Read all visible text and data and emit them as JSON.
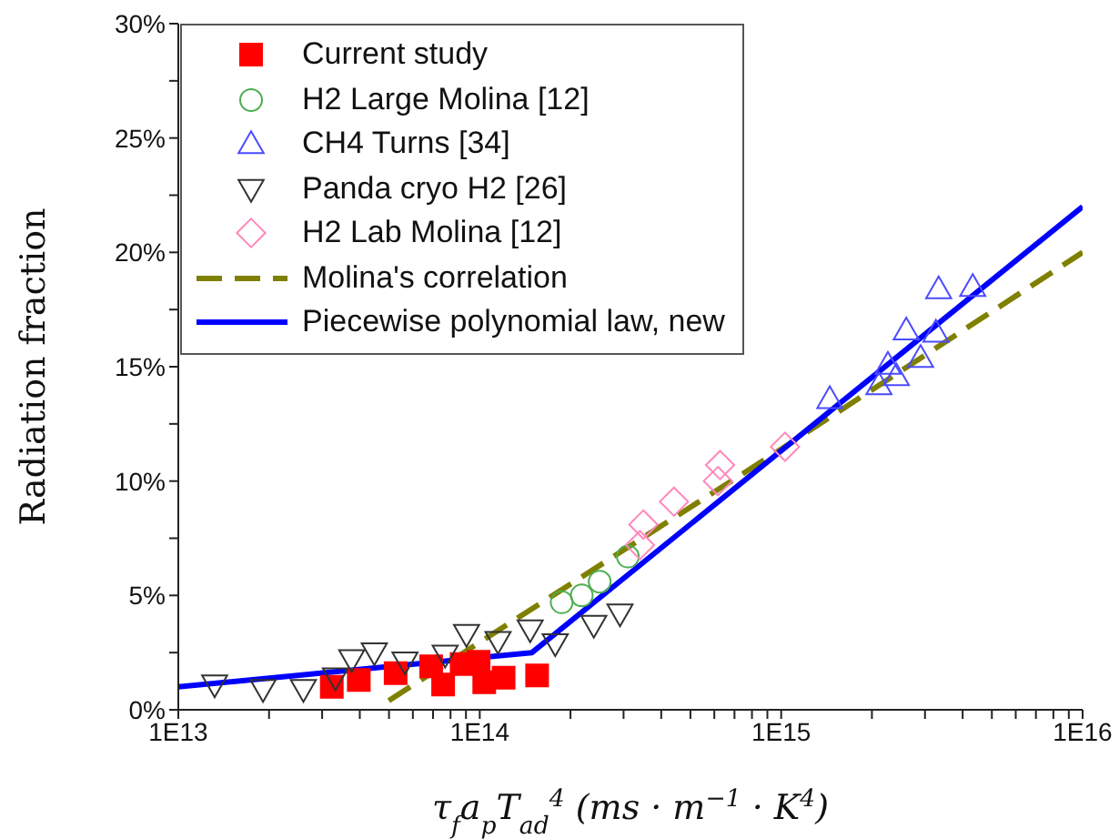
{
  "chart_data": {
    "type": "scatter",
    "xlabel": "τ$_{f}$a$_{p}$T$_{ad}$$^{4}$   (ms · m$^{−1}$ · K$^{4}$)",
    "ylabel": "Radiation fraction",
    "log": "x",
    "legend": "top left",
    "xlim": [
      10000000000000.0,
      1e+16
    ],
    "ylim": [
      0,
      30
    ],
    "xticks": [
      {
        "value": 10000000000000.0,
        "label": "1E13"
      },
      {
        "value": 20000000000000.0,
        "label": null
      },
      {
        "value": 30000000000000.0,
        "label": null
      },
      {
        "value": 40000000000000.0,
        "label": null
      },
      {
        "value": 50000000000000.0,
        "label": null
      },
      {
        "value": 60000000000000.0,
        "label": null
      },
      {
        "value": 70000000000000.0,
        "label": null
      },
      {
        "value": 80000000000000.0,
        "label": null
      },
      {
        "value": 90000000000000.0,
        "label": null
      },
      {
        "value": 100000000000000.0,
        "label": "1E14"
      },
      {
        "value": 200000000000000.0,
        "label": null
      },
      {
        "value": 300000000000000.0,
        "label": null
      },
      {
        "value": 400000000000000.0,
        "label": null
      },
      {
        "value": 500000000000000.0,
        "label": null
      },
      {
        "value": 600000000000000.0,
        "label": null
      },
      {
        "value": 700000000000000.0,
        "label": null
      },
      {
        "value": 800000000000000.0,
        "label": null
      },
      {
        "value": 900000000000000.0,
        "label": null
      },
      {
        "value": 1000000000000000.0,
        "label": "1E15"
      },
      {
        "value": 2000000000000000.0,
        "label": null
      },
      {
        "value": 3000000000000000.0,
        "label": null
      },
      {
        "value": 4000000000000000.0,
        "label": null
      },
      {
        "value": 5000000000000000.0,
        "label": null
      },
      {
        "value": 6000000000000000.0,
        "label": null
      },
      {
        "value": 7000000000000000.0,
        "label": null
      },
      {
        "value": 8000000000000000.0,
        "label": null
      },
      {
        "value": 9000000000000000.0,
        "label": null
      },
      {
        "value": 1e+16,
        "label": "1E16"
      }
    ],
    "yticks": [
      {
        "value": 0,
        "label": "0%"
      },
      {
        "value": 2.5,
        "label": null
      },
      {
        "value": 5,
        "label": "5%"
      },
      {
        "value": 7.5,
        "label": null
      },
      {
        "value": 10,
        "label": "10%"
      },
      {
        "value": 12.5,
        "label": null
      },
      {
        "value": 15,
        "label": "15%"
      },
      {
        "value": 17.5,
        "label": null
      },
      {
        "value": 20,
        "label": "20%"
      },
      {
        "value": 22.5,
        "label": null
      },
      {
        "value": 25,
        "label": "25%"
      },
      {
        "value": 27.5,
        "label": null
      },
      {
        "value": 30,
        "label": "30%"
      }
    ],
    "series": [
      {
        "name": "Current study",
        "marker": "square",
        "color": "#ff0000",
        "x": [
          32300000000000.0,
          39700000000000.0,
          52600000000000.0,
          69000000000000.0,
          75600000000000.0,
          87100000000000.0,
          99100000000000.0,
          103500000000000.0,
          120000000000000.0,
          155000000000000.0
        ],
        "values": [
          1.0,
          1.3,
          1.6,
          1.9,
          1.1,
          2.0,
          2.1,
          1.2,
          1.4,
          1.5
        ]
      },
      {
        "name": "H2 Large Molina [12]",
        "marker": "circle",
        "color": "#4caf50",
        "x": [
          187000000000000.0,
          218000000000000.0,
          250000000000000.0,
          310000000000000.0
        ],
        "values": [
          4.7,
          5.0,
          5.6,
          6.7
        ]
      },
      {
        "name": "CH4 Turns [34]",
        "marker": "triangle",
        "color": "#4b4bff",
        "x": [
          1450000000000000.0,
          2110000000000000.0,
          2260000000000000.0,
          2410000000000000.0,
          2600000000000000.0,
          2900000000000000.0,
          3260000000000000.0,
          3330000000000000.0,
          4320000000000000.0
        ],
        "values": [
          13.6,
          14.2,
          15.1,
          14.6,
          16.6,
          15.4,
          16.5,
          18.4,
          18.5
        ]
      },
      {
        "name": "Panda cryo H2 [26]",
        "marker": "triangle-down",
        "color": "#333333",
        "x": [
          13200000000000.0,
          19100000000000.0,
          26000000000000.0,
          33200000000000.0,
          37600000000000.0,
          44700000000000.0,
          56500000000000.0,
          76800000000000.0,
          90400000000000.0,
          115000000000000.0,
          147000000000000.0,
          178000000000000.0,
          239000000000000.0,
          292000000000000.0
        ],
        "values": [
          1.1,
          0.9,
          0.9,
          1.4,
          2.2,
          2.5,
          2.1,
          2.4,
          3.3,
          3.0,
          3.5,
          2.9,
          3.7,
          4.2
        ]
      },
      {
        "name": "H2 Lab Molina [12]",
        "marker": "diamond",
        "color": "#ff88bb",
        "x": [
          340000000000000.0,
          349000000000000.0,
          441000000000000.0,
          617000000000000.0,
          627000000000000.0,
          1030000000000000.0
        ],
        "values": [
          7.2,
          8.1,
          9.1,
          10.0,
          10.7,
          11.5
        ]
      },
      {
        "name": "Molina's correlation",
        "type": "line",
        "line_style": "dashed",
        "color": "#808000",
        "x": [
          49900000000000.0,
          1000000000000000.0,
          1e+16
        ],
        "values": [
          0.4,
          11.4,
          20.0
        ]
      },
      {
        "name": "Piecewise polynomial law, new",
        "type": "line",
        "line_style": "solid",
        "color": "#0000ff",
        "x": [
          10000000000000.0,
          149000000000000.0,
          1e+16
        ],
        "values": [
          1.0,
          2.5,
          22.0
        ]
      }
    ]
  }
}
